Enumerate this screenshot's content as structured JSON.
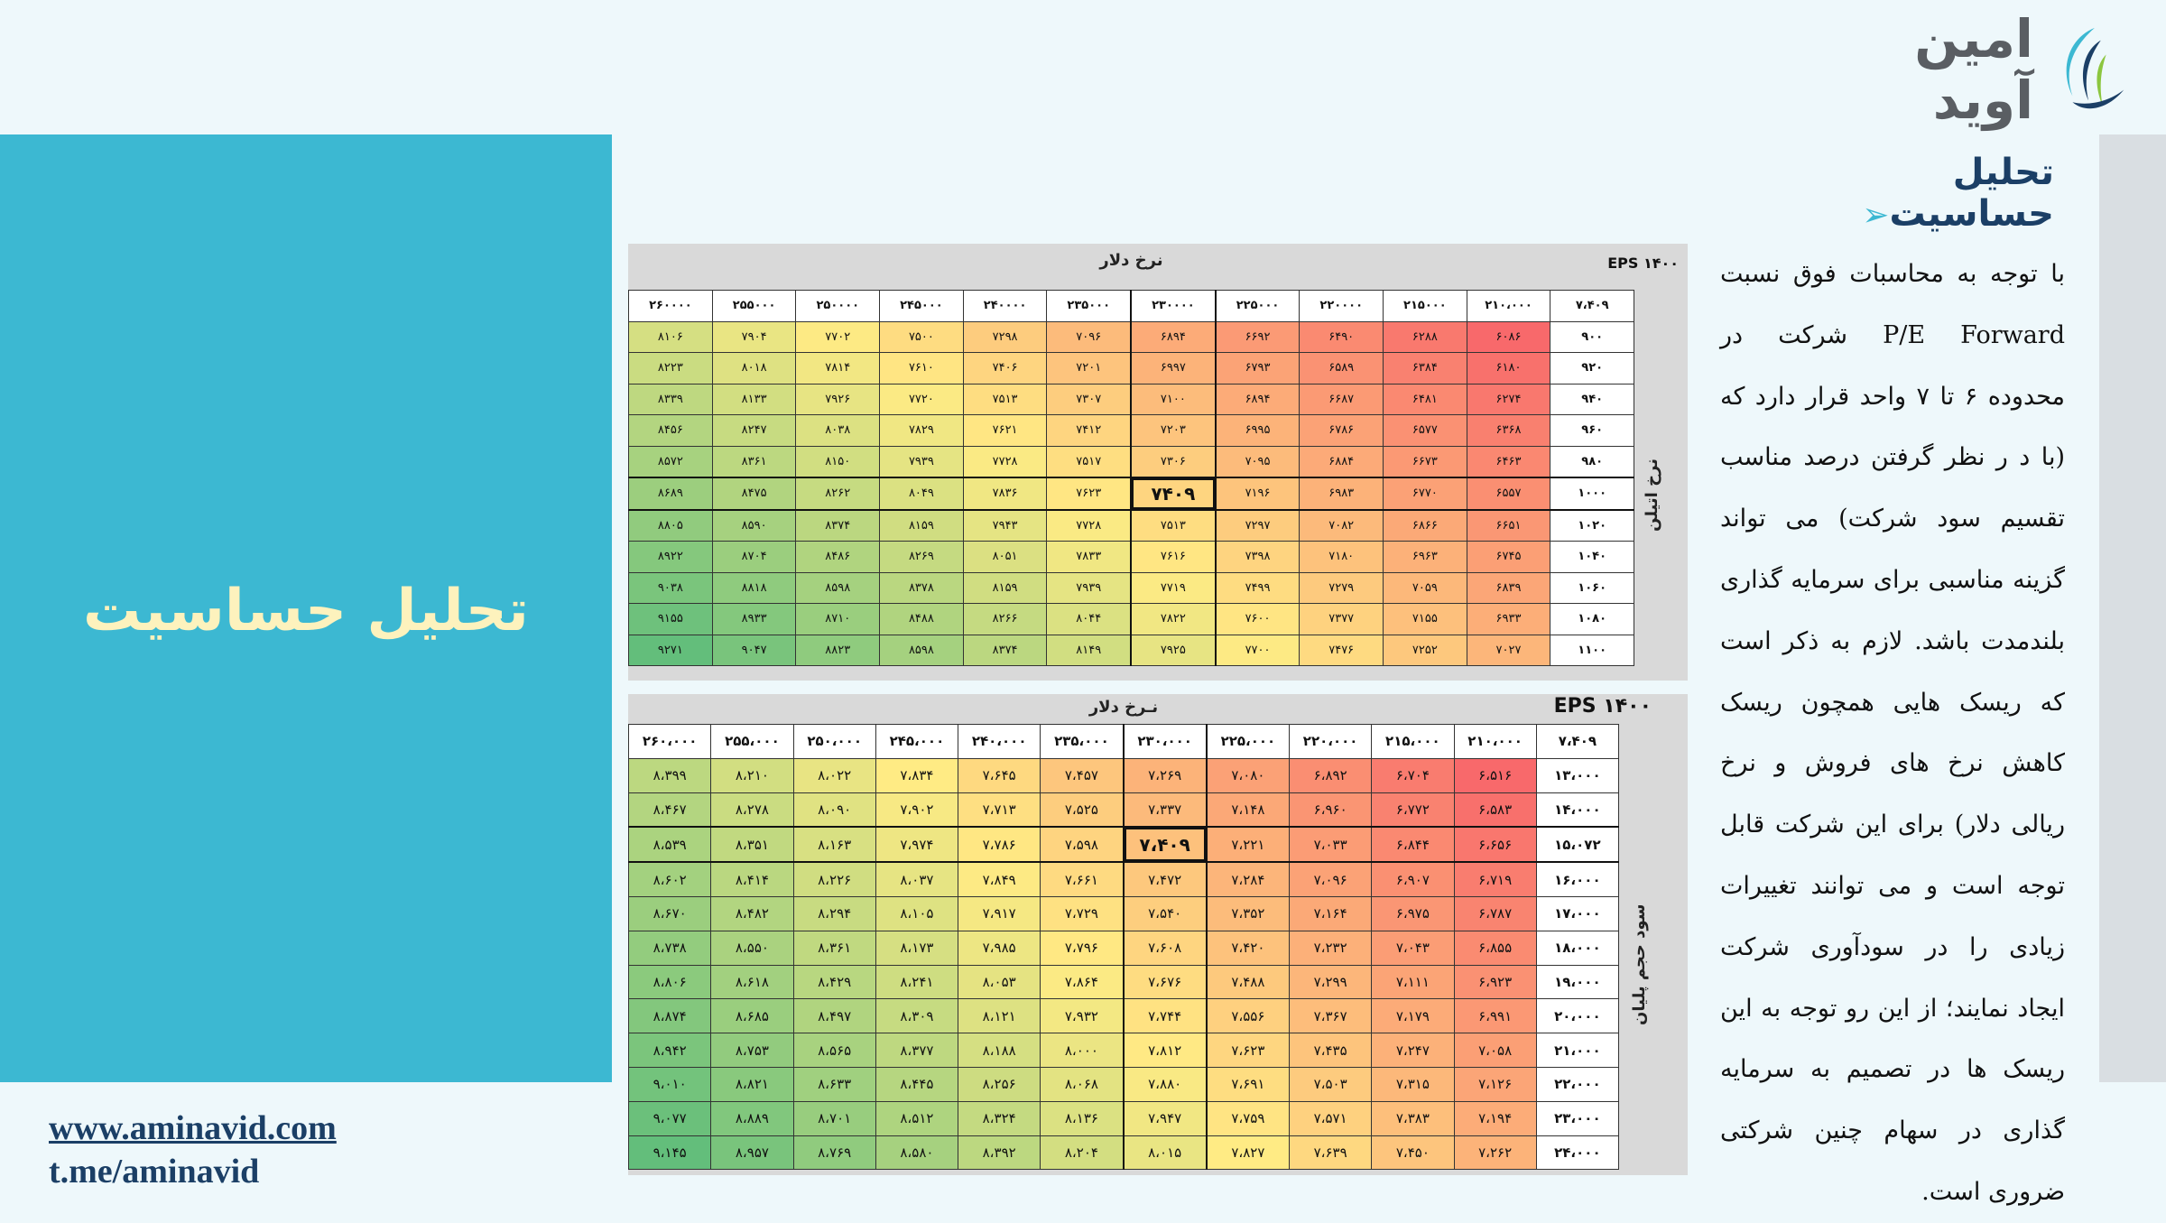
{
  "brand": {
    "logo_text": "امین آوید",
    "website": "www.aminavid.com",
    "telegram": "t.me/aminavid"
  },
  "left_panel": {
    "title": "تحلیل حساسیت"
  },
  "section": {
    "title": "تحلیل حساسیت",
    "body": "با توجه به محاسبات فوق نسبت P/E Forward شرکت در محدوده ۶ تا ۷ واحد قرار دارد که (با د ر نظر گرفتن درصد مناسب تقسیم سود شرکت) می تواند گزینه مناسبی برای سرمایه گذاری بلندمدت باشد. لازم به ذکر است که ریسک هایی همچون ریسک کاهش نرخ های فروش و نرخ ریالی دلار) برای این شرکت قابل توجه است و می توانند تغییرات زیادی را در سودآوری شرکت ایجاد نمایند؛ از این رو توجه به این ریسک ها در تصمیم به سرمایه گذاری در سهام چنین شرکتی ضروری است."
  },
  "colors": {
    "panel": "#3cb8d2",
    "panel_title": "#fdf2bd",
    "navy": "#1b3f66",
    "low": "#f8696b",
    "mid": "#ffeb84",
    "high": "#63be7b"
  },
  "table1": {
    "col_header_label": "نرخ دلار",
    "row_header_label": "نرخ اتیلن",
    "eps_label": "EPS ۱۴۰۰",
    "corner": "۷،۴۰۹",
    "columns": [
      "۲۱۰،۰۰۰",
      "۲۱۵۰۰۰",
      "۲۲۰۰۰۰",
      "۲۲۵۰۰۰",
      "۲۳۰۰۰۰",
      "۲۳۵۰۰۰",
      "۲۴۰۰۰۰",
      "۲۴۵۰۰۰",
      "۲۵۰۰۰۰",
      "۲۵۵۰۰۰",
      "۲۶۰۰۰۰"
    ],
    "center_col": 4,
    "center_row": 5,
    "rows": [
      {
        "label": "۹۰۰",
        "cells": [
          "۶۰۸۶",
          "۶۲۸۸",
          "۶۴۹۰",
          "۶۶۹۲",
          "۶۸۹۴",
          "۷۰۹۶",
          "۷۲۹۸",
          "۷۵۰۰",
          "۷۷۰۲",
          "۷۹۰۴",
          "۸۱۰۶"
        ]
      },
      {
        "label": "۹۲۰",
        "cells": [
          "۶۱۸۰",
          "۶۳۸۴",
          "۶۵۸۹",
          "۶۷۹۳",
          "۶۹۹۷",
          "۷۲۰۱",
          "۷۴۰۶",
          "۷۶۱۰",
          "۷۸۱۴",
          "۸۰۱۸",
          "۸۲۲۳"
        ]
      },
      {
        "label": "۹۴۰",
        "cells": [
          "۶۲۷۴",
          "۶۴۸۱",
          "۶۶۸۷",
          "۶۸۹۴",
          "۷۱۰۰",
          "۷۳۰۷",
          "۷۵۱۳",
          "۷۷۲۰",
          "۷۹۲۶",
          "۸۱۳۳",
          "۸۳۳۹"
        ]
      },
      {
        "label": "۹۶۰",
        "cells": [
          "۶۳۶۸",
          "۶۵۷۷",
          "۶۷۸۶",
          "۶۹۹۵",
          "۷۲۰۳",
          "۷۴۱۲",
          "۷۶۲۱",
          "۷۸۲۹",
          "۸۰۳۸",
          "۸۲۴۷",
          "۸۴۵۶"
        ]
      },
      {
        "label": "۹۸۰",
        "cells": [
          "۶۴۶۳",
          "۶۶۷۳",
          "۶۸۸۴",
          "۷۰۹۵",
          "۷۳۰۶",
          "۷۵۱۷",
          "۷۷۲۸",
          "۷۹۳۹",
          "۸۱۵۰",
          "۸۳۶۱",
          "۸۵۷۲"
        ]
      },
      {
        "label": "۱۰۰۰",
        "cells": [
          "۶۵۵۷",
          "۶۷۷۰",
          "۶۹۸۳",
          "۷۱۹۶",
          "۷۴۰۹",
          "۷۶۲۳",
          "۷۸۳۶",
          "۸۰۴۹",
          "۸۲۶۲",
          "۸۴۷۵",
          "۸۶۸۹"
        ]
      },
      {
        "label": "۱۰۲۰",
        "cells": [
          "۶۶۵۱",
          "۶۸۶۶",
          "۷۰۸۲",
          "۷۲۹۷",
          "۷۵۱۳",
          "۷۷۲۸",
          "۷۹۴۳",
          "۸۱۵۹",
          "۸۳۷۴",
          "۸۵۹۰",
          "۸۸۰۵"
        ]
      },
      {
        "label": "۱۰۴۰",
        "cells": [
          "۶۷۴۵",
          "۶۹۶۳",
          "۷۱۸۰",
          "۷۳۹۸",
          "۷۶۱۶",
          "۷۸۳۳",
          "۸۰۵۱",
          "۸۲۶۹",
          "۸۴۸۶",
          "۸۷۰۴",
          "۸۹۲۲"
        ]
      },
      {
        "label": "۱۰۶۰",
        "cells": [
          "۶۸۳۹",
          "۷۰۵۹",
          "۷۲۷۹",
          "۷۴۹۹",
          "۷۷۱۹",
          "۷۹۳۹",
          "۸۱۵۹",
          "۸۳۷۸",
          "۸۵۹۸",
          "۸۸۱۸",
          "۹۰۳۸"
        ]
      },
      {
        "label": "۱۰۸۰",
        "cells": [
          "۶۹۳۳",
          "۷۱۵۵",
          "۷۳۷۷",
          "۷۶۰۰",
          "۷۸۲۲",
          "۸۰۴۴",
          "۸۲۶۶",
          "۸۴۸۸",
          "۸۷۱۰",
          "۸۹۳۳",
          "۹۱۵۵"
        ]
      },
      {
        "label": "۱۱۰۰",
        "cells": [
          "۷۰۲۷",
          "۷۲۵۲",
          "۷۴۷۶",
          "۷۷۰۰",
          "۷۹۲۵",
          "۸۱۴۹",
          "۸۳۷۴",
          "۸۵۹۸",
          "۸۸۲۳",
          "۹۰۴۷",
          "۹۲۷۱"
        ]
      }
    ]
  },
  "table2": {
    "col_header_label": "نـرخ دلار",
    "row_header_label": "سود حجم پلیان",
    "eps_label": "EPS ۱۴۰۰",
    "corner": "۷،۴۰۹",
    "columns": [
      "۲۱۰،۰۰۰",
      "۲۱۵،۰۰۰",
      "۲۲۰،۰۰۰",
      "۲۲۵،۰۰۰",
      "۲۳۰،۰۰۰",
      "۲۳۵،۰۰۰",
      "۲۴۰،۰۰۰",
      "۲۴۵،۰۰۰",
      "۲۵۰،۰۰۰",
      "۲۵۵،۰۰۰",
      "۲۶۰،۰۰۰"
    ],
    "center_col": 4,
    "center_row": 2,
    "rows": [
      {
        "label": "۱۳،۰۰۰",
        "cells": [
          "۶،۵۱۶",
          "۶،۷۰۴",
          "۶،۸۹۲",
          "۷،۰۸۰",
          "۷،۲۶۹",
          "۷،۴۵۷",
          "۷،۶۴۵",
          "۷،۸۳۴",
          "۸،۰۲۲",
          "۸،۲۱۰",
          "۸،۳۹۹"
        ]
      },
      {
        "label": "۱۴،۰۰۰",
        "cells": [
          "۶،۵۸۳",
          "۶،۷۷۲",
          "۶،۹۶۰",
          "۷،۱۴۸",
          "۷،۳۳۷",
          "۷،۵۲۵",
          "۷،۷۱۳",
          "۷،۹۰۲",
          "۸،۰۹۰",
          "۸،۲۷۸",
          "۸،۴۶۷"
        ]
      },
      {
        "label": "۱۵،۰۷۲",
        "cells": [
          "۶،۶۵۶",
          "۶،۸۴۴",
          "۷،۰۳۳",
          "۷،۲۲۱",
          "۷،۴۰۹",
          "۷،۵۹۸",
          "۷،۷۸۶",
          "۷،۹۷۴",
          "۸،۱۶۳",
          "۸،۳۵۱",
          "۸،۵۳۹"
        ]
      },
      {
        "label": "۱۶،۰۰۰",
        "cells": [
          "۶،۷۱۹",
          "۶،۹۰۷",
          "۷،۰۹۶",
          "۷،۲۸۴",
          "۷،۴۷۲",
          "۷،۶۶۱",
          "۷،۸۴۹",
          "۸،۰۳۷",
          "۸،۲۲۶",
          "۸،۴۱۴",
          "۸،۶۰۲"
        ]
      },
      {
        "label": "۱۷،۰۰۰",
        "cells": [
          "۶،۷۸۷",
          "۶،۹۷۵",
          "۷،۱۶۴",
          "۷،۳۵۲",
          "۷،۵۴۰",
          "۷،۷۲۹",
          "۷،۹۱۷",
          "۸،۱۰۵",
          "۸،۲۹۴",
          "۸،۴۸۲",
          "۸،۶۷۰"
        ]
      },
      {
        "label": "۱۸،۰۰۰",
        "cells": [
          "۶،۸۵۵",
          "۷،۰۴۳",
          "۷،۲۳۲",
          "۷،۴۲۰",
          "۷،۶۰۸",
          "۷،۷۹۶",
          "۷،۹۸۵",
          "۸،۱۷۳",
          "۸،۳۶۱",
          "۸،۵۵۰",
          "۸،۷۳۸"
        ]
      },
      {
        "label": "۱۹،۰۰۰",
        "cells": [
          "۶،۹۲۳",
          "۷،۱۱۱",
          "۷،۲۹۹",
          "۷،۴۸۸",
          "۷،۶۷۶",
          "۷،۸۶۴",
          "۸،۰۵۳",
          "۸،۲۴۱",
          "۸،۴۲۹",
          "۸،۶۱۸",
          "۸،۸۰۶"
        ]
      },
      {
        "label": "۲۰،۰۰۰",
        "cells": [
          "۶،۹۹۱",
          "۷،۱۷۹",
          "۷،۳۶۷",
          "۷،۵۵۶",
          "۷،۷۴۴",
          "۷،۹۳۲",
          "۸،۱۲۱",
          "۸،۳۰۹",
          "۸،۴۹۷",
          "۸،۶۸۵",
          "۸،۸۷۴"
        ]
      },
      {
        "label": "۲۱،۰۰۰",
        "cells": [
          "۷،۰۵۸",
          "۷،۲۴۷",
          "۷،۴۳۵",
          "۷،۶۲۳",
          "۷،۸۱۲",
          "۸،۰۰۰",
          "۸،۱۸۸",
          "۸،۳۷۷",
          "۸،۵۶۵",
          "۸،۷۵۳",
          "۸،۹۴۲"
        ]
      },
      {
        "label": "۲۲،۰۰۰",
        "cells": [
          "۷،۱۲۶",
          "۷،۳۱۵",
          "۷،۵۰۳",
          "۷،۶۹۱",
          "۷،۸۸۰",
          "۸،۰۶۸",
          "۸،۲۵۶",
          "۸،۴۴۵",
          "۸،۶۳۳",
          "۸،۸۲۱",
          "۹،۰۱۰"
        ]
      },
      {
        "label": "۲۳،۰۰۰",
        "cells": [
          "۷،۱۹۴",
          "۷،۳۸۳",
          "۷،۵۷۱",
          "۷،۷۵۹",
          "۷،۹۴۷",
          "۸،۱۳۶",
          "۸،۳۲۴",
          "۸،۵۱۲",
          "۸،۷۰۱",
          "۸،۸۸۹",
          "۹،۰۷۷"
        ]
      },
      {
        "label": "۲۴،۰۰۰",
        "cells": [
          "۷،۲۶۲",
          "۷،۴۵۰",
          "۷،۶۳۹",
          "۷،۸۲۷",
          "۸،۰۱۵",
          "۸،۲۰۴",
          "۸،۳۹۲",
          "۸،۵۸۰",
          "۸،۷۶۹",
          "۸،۹۵۷",
          "۹،۱۴۵"
        ]
      }
    ]
  }
}
